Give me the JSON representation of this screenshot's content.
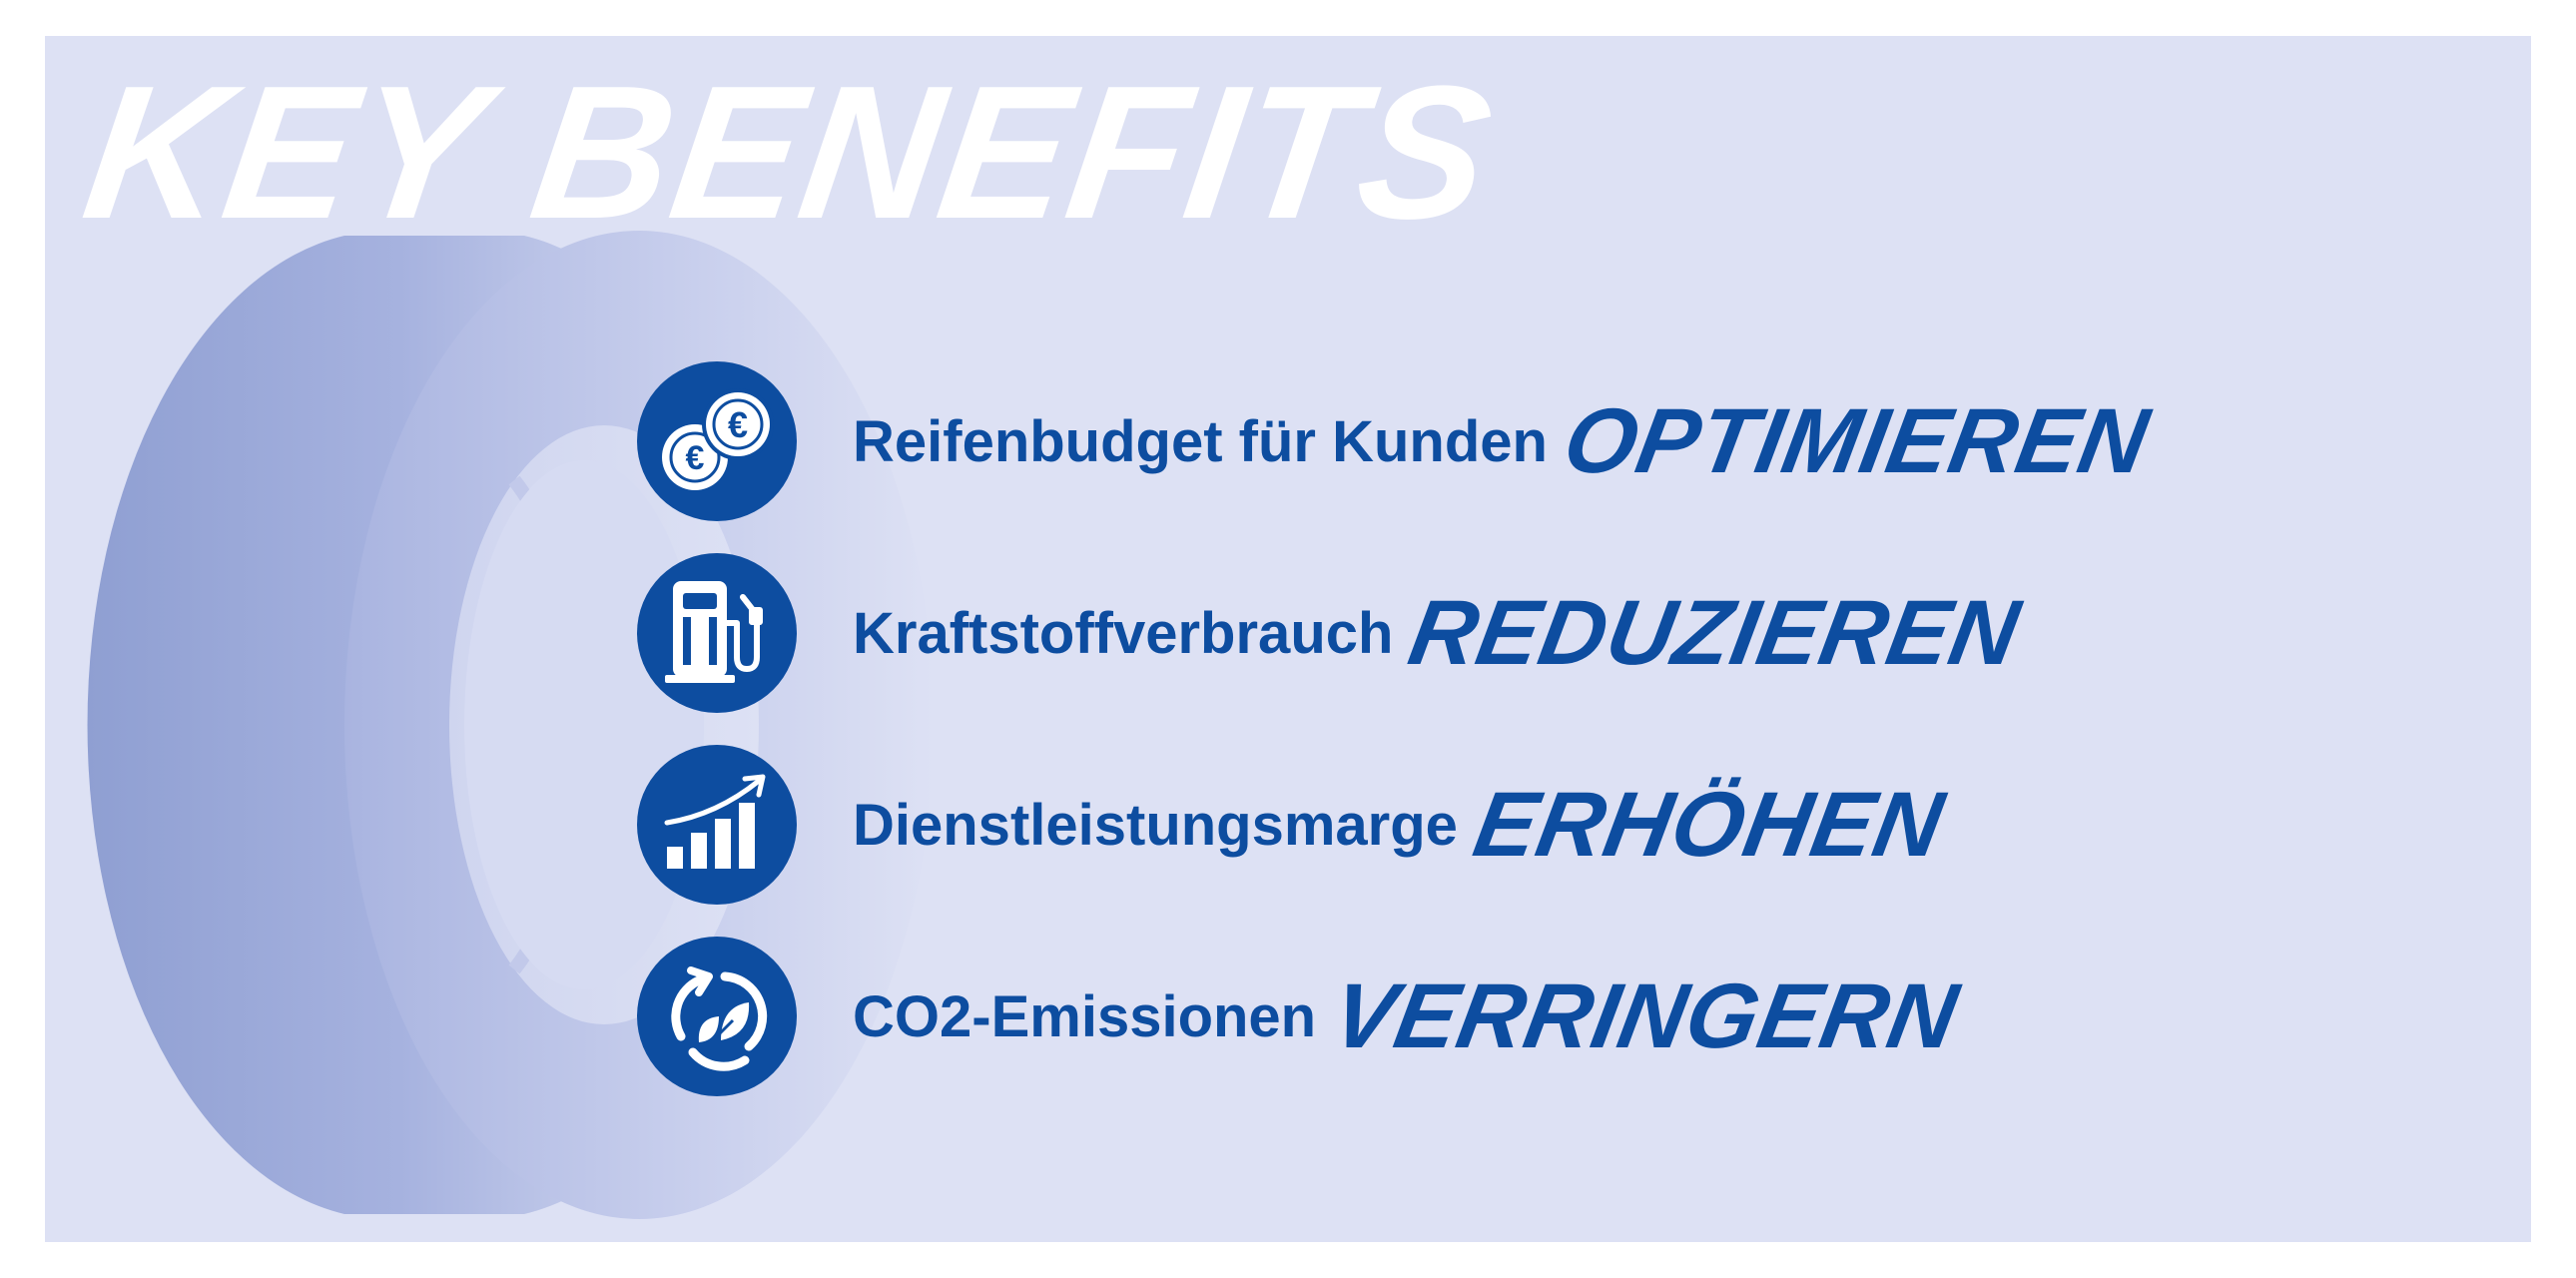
{
  "title": "KEY BENEFITS",
  "benefits": [
    {
      "lead": "Reifenbudget für Kunden",
      "verb": "OPTIMIEREN",
      "icon": "euro-coins-icon"
    },
    {
      "lead": "Kraftstoffverbrauch",
      "verb": "REDUZIEREN",
      "icon": "fuel-pump-icon"
    },
    {
      "lead": "Dienstleistungsmarge",
      "verb": "ERHÖHEN",
      "icon": "growth-chart-icon"
    },
    {
      "lead": "CO2-Emissionen",
      "verb": "VERRINGERN",
      "icon": "eco-cycle-icon"
    }
  ],
  "colors": {
    "panel": "#dde1f4",
    "accent": "#0d4da0",
    "tire": "#8f9fd2",
    "title": "#ffffff"
  },
  "icon_glyphs": {
    "euro": "€"
  }
}
